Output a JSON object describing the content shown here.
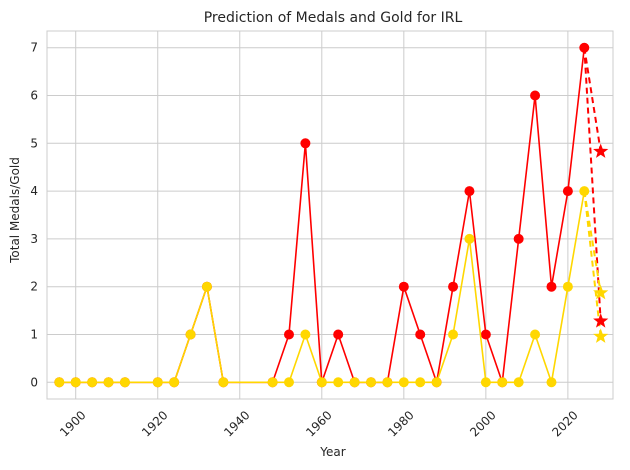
{
  "chart_data": {
    "type": "line",
    "title": "Prediction of Medals and Gold for IRL",
    "xlabel": "Year",
    "ylabel": "Total Medals/Gold",
    "xlim": [
      1893,
      2031
    ],
    "ylim": [
      -0.35,
      7.35
    ],
    "x_ticks": [
      1900,
      1920,
      1940,
      1960,
      1980,
      2000,
      2020
    ],
    "y_ticks": [
      0,
      1,
      2,
      3,
      4,
      5,
      6,
      7
    ],
    "grid": true,
    "colors": {
      "total": "#ff0000",
      "gold": "#ffd700",
      "grid": "#cccccc",
      "spine": "#cccccc"
    },
    "series": [
      {
        "key": "total",
        "x": [
          1896,
          1900,
          1904,
          1908,
          1912,
          1920,
          1924,
          1928,
          1932,
          1936,
          1948,
          1952,
          1956,
          1960,
          1964,
          1968,
          1972,
          1976,
          1980,
          1984,
          1988,
          1992,
          1996,
          2000,
          2004,
          2008,
          2012,
          2016,
          2020,
          2024
        ],
        "values": [
          0,
          0,
          0,
          0,
          0,
          0,
          0,
          1,
          2,
          0,
          0,
          1,
          5,
          0,
          1,
          0,
          0,
          0,
          2,
          1,
          0,
          2,
          4,
          1,
          0,
          3,
          6,
          2,
          4,
          7
        ]
      },
      {
        "key": "gold",
        "x": [
          1896,
          1900,
          1904,
          1908,
          1912,
          1920,
          1924,
          1928,
          1932,
          1936,
          1948,
          1952,
          1956,
          1960,
          1964,
          1968,
          1972,
          1976,
          1980,
          1984,
          1988,
          1992,
          1996,
          2000,
          2004,
          2008,
          2012,
          2016,
          2020,
          2024
        ],
        "values": [
          0,
          0,
          0,
          0,
          0,
          0,
          0,
          1,
          2,
          0,
          0,
          0,
          1,
          0,
          0,
          0,
          0,
          0,
          0,
          0,
          0,
          1,
          3,
          0,
          0,
          0,
          1,
          0,
          2,
          4
        ]
      }
    ],
    "predictions": [
      {
        "key": "total",
        "from": [
          2024,
          7
        ],
        "points": [
          [
            2028,
            4.83
          ],
          [
            2028,
            1.28
          ]
        ]
      },
      {
        "key": "gold",
        "from": [
          2024,
          4
        ],
        "points": [
          [
            2028,
            1.87
          ],
          [
            2028,
            0.96
          ]
        ]
      }
    ]
  }
}
